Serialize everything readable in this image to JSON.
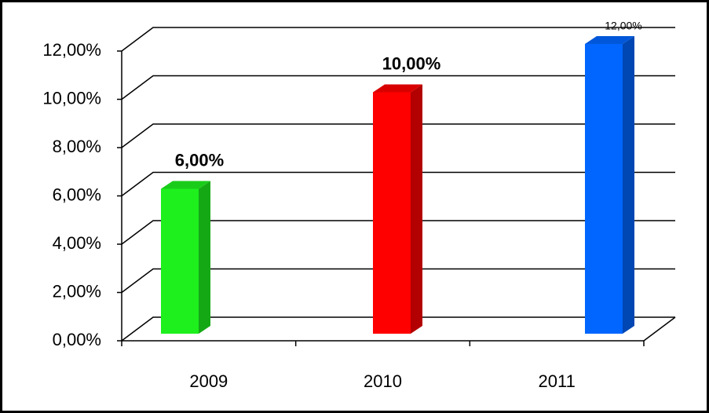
{
  "chart_data": {
    "type": "bar",
    "categories": [
      "2009",
      "2010",
      "2011"
    ],
    "values": [
      6,
      10,
      12
    ],
    "value_labels": [
      "6,00%",
      "10,00%",
      "12,00%"
    ],
    "colors": [
      "#1ef01e",
      "#ff0000",
      "#0066ff"
    ],
    "ylim": [
      0,
      12
    ],
    "yticks": [
      {
        "value": 0,
        "label": "0,00%"
      },
      {
        "value": 2,
        "label": "2,00%"
      },
      {
        "value": 4,
        "label": "4,00%"
      },
      {
        "value": 6,
        "label": "6,00%"
      },
      {
        "value": 8,
        "label": "8,00%"
      },
      {
        "value": 10,
        "label": "10,00%"
      },
      {
        "value": 12,
        "label": "12,00%"
      }
    ],
    "grid": true
  }
}
